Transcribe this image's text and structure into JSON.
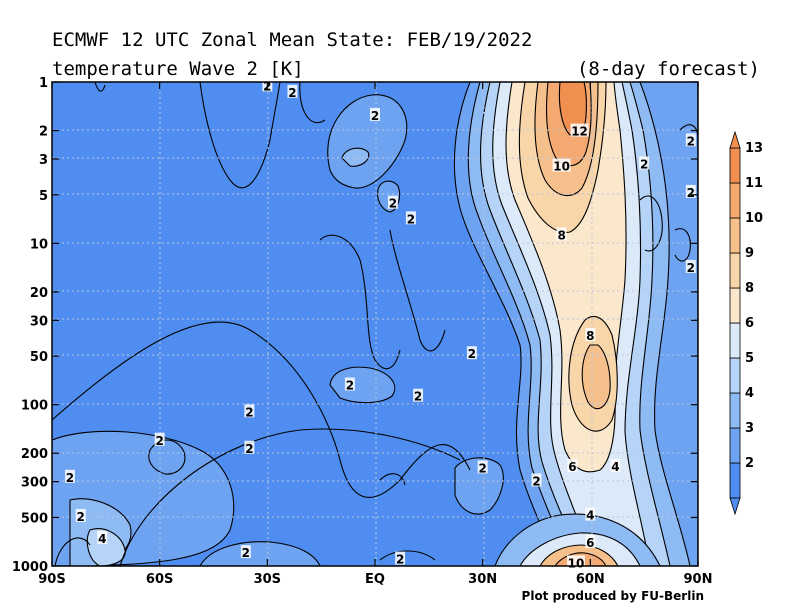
{
  "header": {
    "title": "ECMWF 12 UTC Zonal Mean State: FEB/19/2022",
    "subtitle": "temperature Wave 2 [K]",
    "forecast": "(8-day forecast)"
  },
  "footer": {
    "credit": "Plot produced by FU-Berlin"
  },
  "colors": {
    "background_field": "#4f8ef0",
    "levels": [
      "#4f8ef0",
      "#6ea3f2",
      "#8fbbf4",
      "#b6d4f7",
      "#dbe9f8",
      "#fbe7cc",
      "#f9d5aa",
      "#f6c08c",
      "#f3a970",
      "#f08f50"
    ]
  },
  "chart_data": {
    "type": "heatmap",
    "subtype": "filled-contour",
    "x_axis": {
      "range": [
        "90S",
        "90N"
      ],
      "tick_labels": [
        "90S",
        "60S",
        "30S",
        "EQ",
        "30N",
        "60N",
        "90N"
      ],
      "tick_values": [
        -90,
        -60,
        -30,
        0,
        30,
        60,
        90
      ],
      "scale": "latitude"
    },
    "y_axis": {
      "range": [
        1000,
        1
      ],
      "scale": "log",
      "units": "hPa",
      "tick_labels": [
        "1",
        "2",
        "3",
        "5",
        "10",
        "20",
        "30",
        "50",
        "100",
        "200",
        "300",
        "500",
        "1000"
      ],
      "tick_values": [
        1,
        2,
        3,
        5,
        10,
        20,
        30,
        50,
        100,
        200,
        300,
        500,
        1000
      ]
    },
    "grid": true,
    "colorbar": {
      "placement": "right",
      "levels": [
        2,
        3,
        4,
        5,
        6,
        8,
        9,
        10,
        11,
        13
      ],
      "tick_labels": [
        "2",
        "3",
        "4",
        "5",
        "6",
        "8",
        "9",
        "10",
        "11",
        "13"
      ]
    },
    "contour_labels": [
      {
        "text": "2",
        "lat": -30,
        "p": 1.05
      },
      {
        "text": "2",
        "lat": -23,
        "p": 1.15
      },
      {
        "text": "2",
        "lat": 0,
        "p": 1.6
      },
      {
        "text": "2",
        "lat": 5,
        "p": 5.6
      },
      {
        "text": "2",
        "lat": 10,
        "p": 7
      },
      {
        "text": "12",
        "lat": 57,
        "p": 2
      },
      {
        "text": "10",
        "lat": 52,
        "p": 3.3
      },
      {
        "text": "2",
        "lat": 75,
        "p": 3.2
      },
      {
        "text": "2",
        "lat": 88,
        "p": 2.3
      },
      {
        "text": "2",
        "lat": 88,
        "p": 4.8
      },
      {
        "text": "8",
        "lat": 52,
        "p": 8.8
      },
      {
        "text": "2",
        "lat": 88,
        "p": 14
      },
      {
        "text": "8",
        "lat": 60,
        "p": 37
      },
      {
        "text": "2",
        "lat": 27,
        "p": 48
      },
      {
        "text": "2",
        "lat": -7,
        "p": 75
      },
      {
        "text": "2",
        "lat": 12,
        "p": 88
      },
      {
        "text": "2",
        "lat": -35,
        "p": 110
      },
      {
        "text": "2",
        "lat": -60,
        "p": 165
      },
      {
        "text": "2",
        "lat": -35,
        "p": 185
      },
      {
        "text": "2",
        "lat": -85,
        "p": 280
      },
      {
        "text": "2",
        "lat": 30,
        "p": 245
      },
      {
        "text": "2",
        "lat": 45,
        "p": 295
      },
      {
        "text": "6",
        "lat": 55,
        "p": 240
      },
      {
        "text": "4",
        "lat": 67,
        "p": 240
      },
      {
        "text": "4",
        "lat": 60,
        "p": 480
      },
      {
        "text": "2",
        "lat": -82,
        "p": 490
      },
      {
        "text": "4",
        "lat": -76,
        "p": 670
      },
      {
        "text": "6",
        "lat": 60,
        "p": 710
      },
      {
        "text": "2",
        "lat": -36,
        "p": 820
      },
      {
        "text": "2",
        "lat": 7,
        "p": 900
      },
      {
        "text": "10",
        "lat": 56,
        "p": 950
      }
    ]
  }
}
